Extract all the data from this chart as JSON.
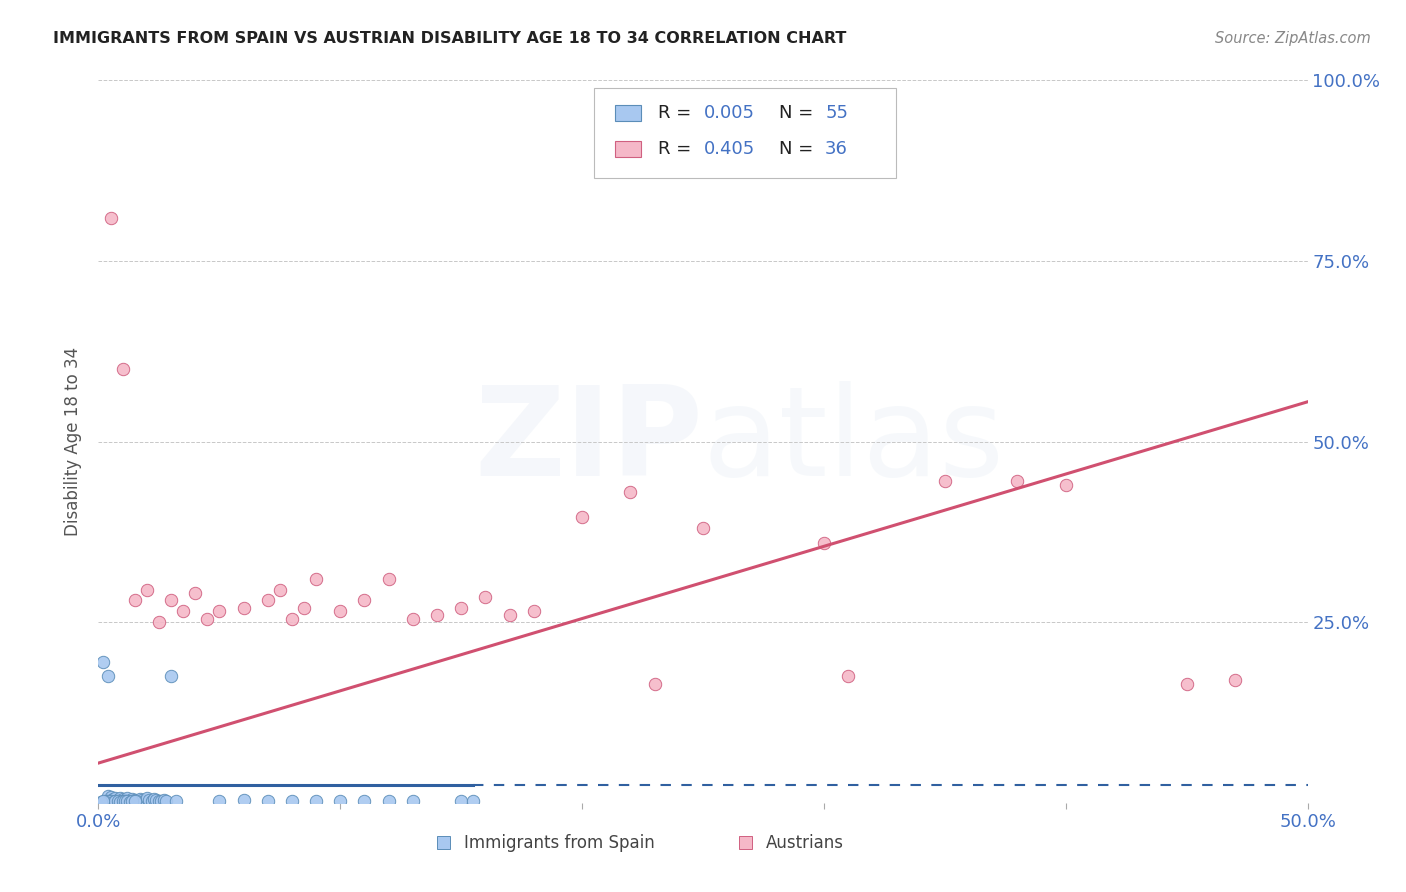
{
  "title": "IMMIGRANTS FROM SPAIN VS AUSTRIAN DISABILITY AGE 18 TO 34 CORRELATION CHART",
  "source": "Source: ZipAtlas.com",
  "xlabel_bottom": [
    "Immigrants from Spain",
    "Austrians"
  ],
  "ylabel": "Disability Age 18 to 34",
  "xlim": [
    0.0,
    0.5
  ],
  "ylim": [
    0.0,
    1.0
  ],
  "xticks": [
    0.0,
    0.1,
    0.2,
    0.3,
    0.4,
    0.5
  ],
  "xtick_labels": [
    "0.0%",
    "",
    "",
    "",
    "",
    "50.0%"
  ],
  "ytick_vals": [
    0.0,
    0.25,
    0.5,
    0.75,
    1.0
  ],
  "ytick_labels_right": [
    "",
    "25.0%",
    "50.0%",
    "75.0%",
    "100.0%"
  ],
  "color_blue_fill": "#A8C8F0",
  "color_blue_edge": "#5B8DB8",
  "color_pink_fill": "#F5B8C8",
  "color_pink_edge": "#D06080",
  "color_line_blue": "#3060A0",
  "color_line_pink": "#D05070",
  "color_text_blue": "#4472C4",
  "color_title": "#222222",
  "color_source": "#888888",
  "color_grid": "#C8C8C8",
  "watermark_color": "#A0B8D8",
  "blue_scatter": [
    [
      0.002,
      0.195
    ],
    [
      0.004,
      0.175
    ],
    [
      0.004,
      0.01
    ],
    [
      0.005,
      0.008
    ],
    [
      0.006,
      0.005
    ],
    [
      0.007,
      0.006
    ],
    [
      0.008,
      0.004
    ],
    [
      0.009,
      0.007
    ],
    [
      0.01,
      0.005
    ],
    [
      0.011,
      0.004
    ],
    [
      0.012,
      0.006
    ],
    [
      0.013,
      0.003
    ],
    [
      0.014,
      0.005
    ],
    [
      0.015,
      0.004
    ],
    [
      0.016,
      0.003
    ],
    [
      0.017,
      0.005
    ],
    [
      0.018,
      0.004
    ],
    [
      0.019,
      0.003
    ],
    [
      0.02,
      0.006
    ],
    [
      0.021,
      0.004
    ],
    [
      0.022,
      0.003
    ],
    [
      0.023,
      0.005
    ],
    [
      0.024,
      0.004
    ],
    [
      0.025,
      0.003
    ],
    [
      0.026,
      0.002
    ],
    [
      0.027,
      0.004
    ],
    [
      0.028,
      0.003
    ],
    [
      0.003,
      0.002
    ],
    [
      0.004,
      0.003
    ],
    [
      0.005,
      0.002
    ],
    [
      0.006,
      0.001
    ],
    [
      0.007,
      0.003
    ],
    [
      0.008,
      0.002
    ],
    [
      0.009,
      0.001
    ],
    [
      0.01,
      0.002
    ],
    [
      0.011,
      0.003
    ],
    [
      0.012,
      0.002
    ],
    [
      0.013,
      0.001
    ],
    [
      0.014,
      0.002
    ],
    [
      0.015,
      0.003
    ],
    [
      0.001,
      0.001
    ],
    [
      0.002,
      0.002
    ],
    [
      0.03,
      0.175
    ],
    [
      0.032,
      0.003
    ],
    [
      0.05,
      0.003
    ],
    [
      0.06,
      0.004
    ],
    [
      0.07,
      0.003
    ],
    [
      0.08,
      0.002
    ],
    [
      0.09,
      0.003
    ],
    [
      0.1,
      0.002
    ],
    [
      0.11,
      0.003
    ],
    [
      0.12,
      0.002
    ],
    [
      0.13,
      0.003
    ],
    [
      0.15,
      0.002
    ],
    [
      0.155,
      0.003
    ]
  ],
  "pink_scatter": [
    [
      0.005,
      0.81
    ],
    [
      0.01,
      0.6
    ],
    [
      0.015,
      0.28
    ],
    [
      0.02,
      0.295
    ],
    [
      0.025,
      0.25
    ],
    [
      0.03,
      0.28
    ],
    [
      0.035,
      0.265
    ],
    [
      0.04,
      0.29
    ],
    [
      0.045,
      0.255
    ],
    [
      0.05,
      0.265
    ],
    [
      0.06,
      0.27
    ],
    [
      0.07,
      0.28
    ],
    [
      0.075,
      0.295
    ],
    [
      0.08,
      0.255
    ],
    [
      0.085,
      0.27
    ],
    [
      0.09,
      0.31
    ],
    [
      0.1,
      0.265
    ],
    [
      0.11,
      0.28
    ],
    [
      0.12,
      0.31
    ],
    [
      0.13,
      0.255
    ],
    [
      0.14,
      0.26
    ],
    [
      0.15,
      0.27
    ],
    [
      0.16,
      0.285
    ],
    [
      0.17,
      0.26
    ],
    [
      0.18,
      0.265
    ],
    [
      0.2,
      0.395
    ],
    [
      0.22,
      0.43
    ],
    [
      0.23,
      0.165
    ],
    [
      0.25,
      0.38
    ],
    [
      0.3,
      0.36
    ],
    [
      0.31,
      0.175
    ],
    [
      0.35,
      0.445
    ],
    [
      0.38,
      0.445
    ],
    [
      0.4,
      0.44
    ],
    [
      0.45,
      0.165
    ],
    [
      0.47,
      0.17
    ]
  ],
  "blue_trend_x": [
    0.0,
    0.5
  ],
  "blue_trend_y": [
    0.025,
    0.025
  ],
  "blue_line_solid_end": 0.155,
  "pink_trend_x": [
    0.0,
    0.5
  ],
  "pink_trend_y": [
    0.055,
    0.555
  ],
  "watermark_alpha": 0.1,
  "scatter_size": 80
}
